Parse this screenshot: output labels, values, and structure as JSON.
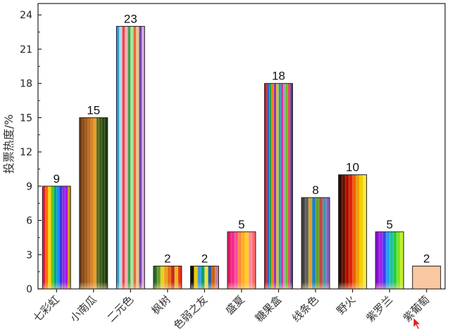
{
  "chart_data": {
    "type": "bar",
    "categories": [
      "七彩虹",
      "小南瓜",
      "二元色",
      "枫树",
      "色弱之友",
      "盛夏",
      "糖果盒",
      "线条色",
      "野火",
      "紫罗兰",
      "紫葡萄"
    ],
    "values": [
      9,
      15,
      23,
      2,
      2,
      5,
      18,
      8,
      10,
      5,
      2
    ],
    "xlabel": "",
    "ylabel": "投票热度/%",
    "ylim": [
      0,
      25
    ],
    "yticks": [
      0,
      3,
      6,
      9,
      12,
      15,
      18,
      21,
      24
    ],
    "grid": false,
    "bar_palettes": [
      [
        "#e8183a",
        "#ff6a00",
        "#ffd400",
        "#5ac82a",
        "#00a86b",
        "#1a8cff",
        "#2b3bd6",
        "#8a2be2",
        "#b200ff",
        "#c49a00"
      ],
      [
        "#6b3b12",
        "#8a4a14",
        "#a35a18",
        "#c06b1e",
        "#d8821f",
        "#e89a2a",
        "#5a6b1e",
        "#3c5a14",
        "#2a4a12",
        "#1e3a0e"
      ],
      [
        "#2aa1d8",
        "#b8d8f0",
        "#e84848",
        "#f0b0b8",
        "#4aa04a",
        "#b0e0a8",
        "#e07030",
        "#f0c090",
        "#6a48b0",
        "#d8a8e0"
      ],
      [
        "#2a6a1e",
        "#6a9a2a",
        "#e8d018",
        "#f0a018",
        "#e86a18",
        "#c82818",
        "#e8b818",
        "#f03018"
      ],
      [
        "#111111",
        "#f0c800",
        "#3aa0e0",
        "#00a070",
        "#f0e040",
        "#2060a0",
        "#d06010",
        "#c080a0"
      ],
      [
        "#e8186a",
        "#f02a8a",
        "#ff4aa0",
        "#ff8a3a",
        "#ffb020",
        "#ffd020",
        "#ff8aa0",
        "#ff6a6a"
      ],
      [
        "#e01010",
        "#2060d8",
        "#20a040",
        "#f08010",
        "#8a2ad8",
        "#e0c010",
        "#10a0c0",
        "#e02aa0",
        "#a0a0a0",
        "#60c020",
        "#f04060",
        "#4040a0"
      ],
      [
        "#404040",
        "#606060",
        "#e0a020",
        "#2080c0",
        "#60a030",
        "#d04040",
        "#30a0a0",
        "#8a60c0"
      ],
      [
        "#2a0a00",
        "#6a1000",
        "#b01000",
        "#e02000",
        "#f06000",
        "#f0a000",
        "#f0d000",
        "#f8e840"
      ],
      [
        "#8a10d0",
        "#a020f0",
        "#4040f0",
        "#20a0f0",
        "#20c0a0",
        "#20d040",
        "#80e020",
        "#c0f020"
      ],
      [
        "#f8c8a0"
      ]
    ],
    "bar_colors_solid": [
      false,
      false,
      false,
      false,
      false,
      false,
      false,
      false,
      false,
      false,
      true
    ]
  }
}
